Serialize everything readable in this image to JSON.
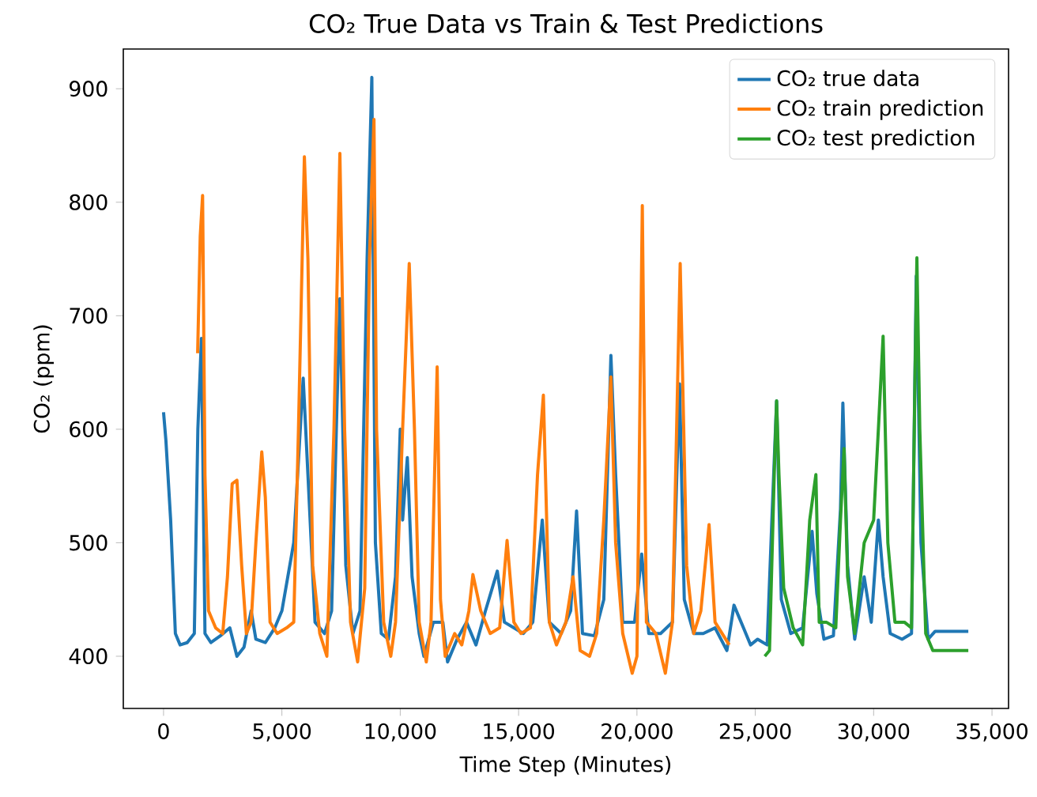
{
  "chart_data": {
    "type": "line",
    "title": "CO₂ True Data vs Train & Test Predictions",
    "xlabel": "Time Step (Minutes)",
    "ylabel": "CO₂ (ppm)",
    "xlim": [
      -1700,
      35700
    ],
    "ylim": [
      354,
      935
    ],
    "xticks": [
      0,
      {
        "value": 5000,
        "label": "5,000"
      },
      {
        "value": 10000,
        "label": "10,000"
      },
      {
        "value": 15000,
        "label": "15,000"
      },
      {
        "value": 20000,
        "label": "20,000"
      },
      {
        "value": 25000,
        "label": "25,000"
      },
      {
        "value": 30000,
        "label": "30,000"
      },
      {
        "value": 35000,
        "label": "35,000"
      }
    ],
    "yticks": [
      400,
      500,
      600,
      700,
      800,
      900
    ],
    "legend": "top right",
    "series": [
      {
        "name": "CO₂ true data",
        "color": "#1f77b4",
        "x": [
          0,
          100,
          300,
          500,
          700,
          1000,
          1300,
          1450,
          1600,
          1750,
          2000,
          2400,
          2800,
          3100,
          3400,
          3700,
          3900,
          4300,
          4700,
          5000,
          5500,
          5900,
          6100,
          6400,
          6800,
          7100,
          7300,
          7450,
          7700,
          8000,
          8300,
          8600,
          8800,
          8950,
          9200,
          9500,
          9800,
          10000,
          10100,
          10300,
          10500,
          10800,
          11000,
          11400,
          11600,
          11800,
          12000,
          12400,
          12800,
          13200,
          13600,
          14100,
          14400,
          14800,
          15200,
          15600,
          16000,
          16300,
          16800,
          17200,
          17450,
          17700,
          18200,
          18600,
          18900,
          19100,
          19400,
          19900,
          20200,
          20500,
          21000,
          21500,
          21800,
          22000,
          22400,
          22800,
          23300,
          23800,
          24100,
          24500,
          24800,
          25100,
          25500,
          25700,
          25900,
          26100,
          26500,
          27000,
          27400,
          27600,
          27900,
          28300,
          28600,
          28700,
          28900,
          29200,
          29600,
          29900,
          30200,
          30400,
          30700,
          31200,
          31600,
          31800,
          32000,
          32300,
          32600,
          34000
        ],
        "values": [
          615,
          590,
          520,
          420,
          410,
          412,
          420,
          600,
          680,
          420,
          412,
          418,
          425,
          400,
          408,
          440,
          415,
          412,
          425,
          440,
          500,
          645,
          560,
          430,
          420,
          440,
          600,
          715,
          480,
          420,
          440,
          750,
          910,
          500,
          420,
          415,
          470,
          600,
          520,
          575,
          470,
          420,
          400,
          430,
          null,
          430,
          395,
          415,
          430,
          410,
          440,
          475,
          430,
          425,
          420,
          430,
          520,
          430,
          420,
          440,
          528,
          420,
          418,
          450,
          665,
          560,
          430,
          430,
          490,
          420,
          420,
          430,
          640,
          450,
          420,
          420,
          425,
          405,
          445,
          425,
          410,
          415,
          410,
          520,
          625,
          450,
          420,
          425,
          510,
          455,
          415,
          418,
          530,
          623,
          480,
          415,
          470,
          430,
          520,
          470,
          420,
          415,
          420,
          735,
          500,
          415,
          422,
          422
        ]
      },
      {
        "name": "CO₂ train prediction",
        "color": "#ff7f0e",
        "x": [
          1440,
          1550,
          1650,
          1750,
          1900,
          2200,
          2500,
          2700,
          2900,
          3100,
          3300,
          3500,
          3700,
          3900,
          4150,
          4300,
          4500,
          4800,
          5200,
          5500,
          5700,
          5950,
          6100,
          6300,
          6600,
          6900,
          7200,
          7450,
          7650,
          7900,
          8200,
          8500,
          8700,
          8890,
          9000,
          9300,
          9600,
          9800,
          10100,
          10380,
          10600,
          10800,
          11100,
          11300,
          11560,
          11700,
          11900,
          12300,
          12600,
          12900,
          13070,
          13400,
          13800,
          14200,
          14513,
          14800,
          15100,
          15500,
          15800,
          16047,
          16300,
          16600,
          17000,
          17300,
          17600,
          18000,
          18300,
          18600,
          18900,
          19100,
          19400,
          19800,
          20000,
          20227,
          20400,
          20800,
          21200,
          21500,
          21827,
          22100,
          22400,
          22700,
          23047,
          23300,
          23600,
          23900
        ],
        "values": [
          667,
          770,
          806,
          560,
          440,
          425,
          420,
          470,
          552,
          555,
          480,
          420,
          430,
          500,
          580,
          540,
          430,
          420,
          425,
          430,
          600,
          840,
          750,
          480,
          420,
          400,
          600,
          843,
          600,
          430,
          395,
          460,
          750,
          873,
          600,
          430,
          400,
          430,
          600,
          746,
          600,
          430,
          395,
          430,
          655,
          450,
          400,
          420,
          410,
          440,
          472,
          440,
          420,
          425,
          502,
          430,
          420,
          425,
          560,
          630,
          430,
          410,
          430,
          470,
          405,
          400,
          420,
          520,
          646,
          500,
          420,
          385,
          400,
          797,
          430,
          420,
          385,
          430,
          746,
          480,
          420,
          440,
          516,
          430,
          420,
          410
        ]
      },
      {
        "name": "CO₂ test prediction",
        "color": "#2ca02c",
        "x": [
          25400,
          25600,
          25800,
          25900,
          26000,
          26200,
          26600,
          27000,
          27300,
          27560,
          27700,
          28000,
          28400,
          28600,
          28750,
          28900,
          29200,
          29600,
          30000,
          30200,
          30400,
          30600,
          30900,
          31300,
          31600,
          31750,
          31827,
          31950,
          32200,
          32500,
          34000
        ],
        "values": [
          400,
          405,
          560,
          625,
          560,
          460,
          425,
          410,
          520,
          560,
          430,
          430,
          425,
          520,
          583,
          470,
          420,
          500,
          520,
          600,
          682,
          500,
          430,
          430,
          425,
          650,
          751,
          600,
          420,
          405,
          405
        ]
      }
    ]
  }
}
